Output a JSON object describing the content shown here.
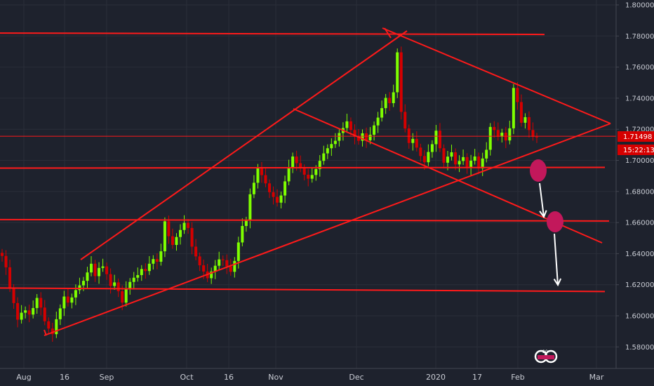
{
  "colors": {
    "background": "#1e222d",
    "grid": "#2a2e39",
    "up": "#7fff00",
    "down": "#d50000",
    "drawing": "#ff1a1a",
    "marker": "#c2185b",
    "arrow": "#ffffff",
    "axis_text": "#c9ccd4"
  },
  "chart_data": {
    "type": "candlestick",
    "title": "",
    "xlabel": "",
    "ylabel": "",
    "ylim": [
      1.575,
      1.8
    ],
    "y_ticks": [
      "1.80000",
      "1.78000",
      "1.76000",
      "1.74000",
      "1.72000",
      "1.70000",
      "1.68000",
      "1.66000",
      "1.64000",
      "1.62000",
      "1.60000",
      "1.58000"
    ],
    "x_ticks": [
      "Aug",
      "16",
      "Sep",
      "Oct",
      "16",
      "Nov",
      "Dec",
      "2020",
      "17",
      "Feb",
      "Mar"
    ],
    "current_price": "1.71498",
    "countdown": "15:22:13",
    "logo_text": "20",
    "grid": true,
    "closes": [
      1.6385,
      1.6312,
      1.6178,
      1.6082,
      1.5975,
      1.602,
      1.6035,
      1.6008,
      1.605,
      1.6115,
      1.6053,
      1.5965,
      1.5918,
      1.5882,
      1.5978,
      1.6048,
      1.6124,
      1.6085,
      1.6118,
      1.6165,
      1.6196,
      1.6225,
      1.6279,
      1.6335,
      1.6255,
      1.6308,
      1.6318,
      1.6268,
      1.6192,
      1.6215,
      1.6158,
      1.6085,
      1.6173,
      1.6218,
      1.6245,
      1.6262,
      1.6301,
      1.6288,
      1.6335,
      1.6365,
      1.6348,
      1.6415,
      1.6608,
      1.6512,
      1.6456,
      1.6507,
      1.6552,
      1.6598,
      1.6565,
      1.6445,
      1.6382,
      1.6325,
      1.6285,
      1.6242,
      1.6285,
      1.6322,
      1.6363,
      1.6358,
      1.6318,
      1.6283,
      1.6353,
      1.6472,
      1.6578,
      1.6612,
      1.6782,
      1.6856,
      1.6952,
      1.6905,
      1.6852,
      1.6795,
      1.6765,
      1.6728,
      1.6774,
      1.6865,
      1.6955,
      1.7025,
      1.6982,
      1.6949,
      1.6908,
      1.6882,
      1.6906,
      1.6944,
      1.6997,
      1.7045,
      1.7078,
      1.7105,
      1.7126,
      1.7176,
      1.7208,
      1.7251,
      1.7195,
      1.7152,
      1.7126,
      1.7174,
      1.7129,
      1.7165,
      1.7225,
      1.7275,
      1.7336,
      1.7402,
      1.7368,
      1.7438,
      1.7695,
      1.7312,
      1.7205,
      1.7112,
      1.7138,
      1.7082,
      1.7028,
      1.6988,
      1.7054,
      1.7104,
      1.7191,
      1.7078,
      1.6985,
      1.7024,
      1.7052,
      1.6974,
      1.6996,
      1.7021,
      1.6951,
      1.6998,
      1.7025,
      1.6948,
      1.7012,
      1.7068,
      1.7215,
      1.7195,
      1.7152,
      1.7178,
      1.7128,
      1.7206,
      1.7466,
      1.7375,
      1.7242,
      1.7278,
      1.7195,
      1.7152,
      1.7149
    ],
    "annotations": [
      {
        "kind": "horizontal",
        "price": 1.781
      },
      {
        "kind": "horizontal",
        "price": 1.6955
      },
      {
        "kind": "horizontal",
        "price": 1.661
      },
      {
        "kind": "horizontal",
        "price": 1.617
      },
      {
        "kind": "horizontal",
        "price": 1.7155
      },
      {
        "kind": "wedge-lower",
        "from": [
          0,
          1.5875
        ],
        "to": [
          1,
          1.7225
        ]
      },
      {
        "kind": "wedge-upper",
        "from": [
          0,
          1.635
        ],
        "to": [
          1,
          1.7225
        ]
      },
      {
        "kind": "marker",
        "price": 1.6935
      },
      {
        "kind": "marker",
        "price": 1.6615
      },
      {
        "kind": "arrow",
        "from": 1.686,
        "to": 1.664
      },
      {
        "kind": "arrow",
        "from": 1.654,
        "to": 1.618
      }
    ]
  }
}
